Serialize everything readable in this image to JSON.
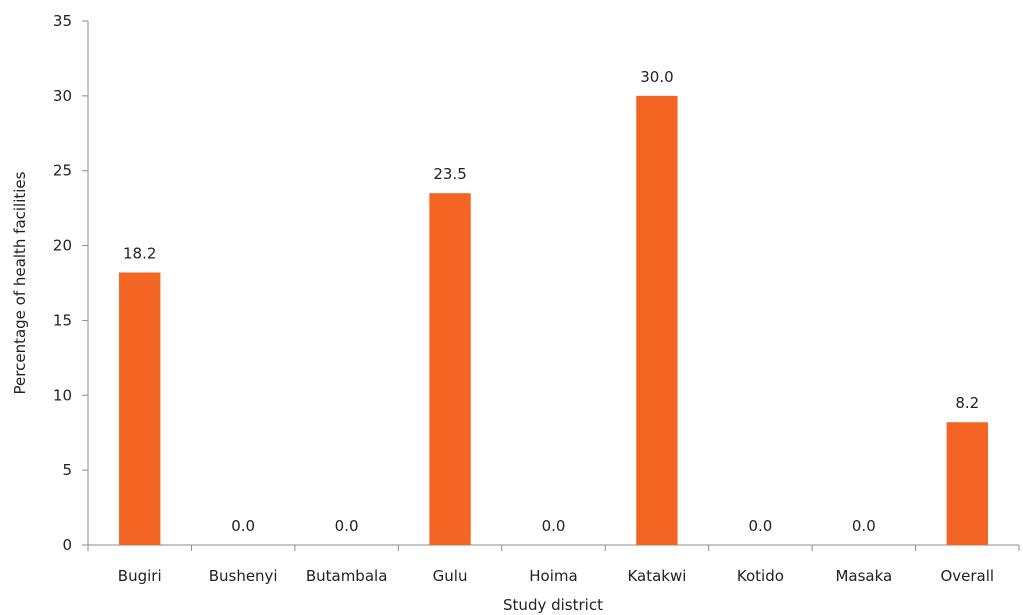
{
  "chart_data": {
    "type": "bar",
    "categories": [
      "Bugiri",
      "Bushenyi",
      "Butambala",
      "Gulu",
      "Hoima",
      "Katakwi",
      "Kotido",
      "Masaka",
      "Overall"
    ],
    "values": [
      18.2,
      0.0,
      0.0,
      23.5,
      0.0,
      30.0,
      0.0,
      0.0,
      8.2
    ],
    "data_labels": [
      "18.2",
      "0.0",
      "0.0",
      "23.5",
      "0.0",
      "30.0",
      "0.0",
      "0.0",
      "8.2"
    ],
    "xlabel": "Study district",
    "ylabel": "Percentage of health facilities",
    "ylim": [
      0,
      35
    ],
    "yticks": [
      0,
      5,
      10,
      15,
      20,
      25,
      30,
      35
    ],
    "grid": false,
    "bar_color": "#f26522"
  }
}
